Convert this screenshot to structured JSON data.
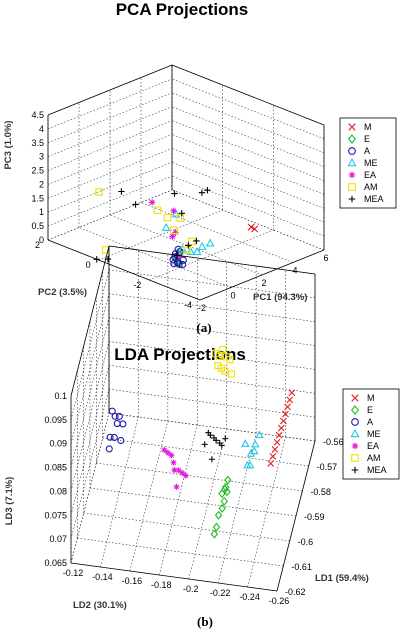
{
  "colors": {
    "M": "#e02020",
    "E": "#22bb22",
    "A": "#1a1aa8",
    "ME": "#22c8e8",
    "EA": "#e020e0",
    "AM": "#f0e000",
    "MEA": "#000000"
  },
  "chart_data": [
    {
      "type": "scatter3d",
      "title": "PCA Projections",
      "caption": "(a)",
      "xlabel": "PC1 (94.3%)",
      "ylabel": "PC2 (3.5%)",
      "zlabel": "PC3 (1.0%)",
      "xlim": [
        -2,
        6
      ],
      "ylim": [
        -4,
        4
      ],
      "zlim": [
        0,
        4.5
      ],
      "xticks": [
        "-2",
        "0",
        "2",
        "4",
        "6"
      ],
      "yticks": [
        "-4",
        "-2",
        "0",
        "2"
      ],
      "zticks": [
        "0",
        "0.5",
        "1",
        "1.5",
        "2",
        "2.5",
        "3",
        "3.5",
        "4",
        "4.5"
      ],
      "legend": [
        "M",
        "E",
        "A",
        "ME",
        "EA",
        "AM",
        "MEA"
      ],
      "series": [
        {
          "name": "M",
          "points": [
            [
              4.1,
              -1.9,
              0.62
            ],
            [
              4.0,
              -1.8,
              0.68
            ]
          ]
        },
        {
          "name": "E",
          "points": [
            [
              0.1,
              -1.1,
              0.3
            ],
            [
              0.2,
              -1.1,
              0.38
            ],
            [
              0.1,
              -1.1,
              0.18
            ],
            [
              0.15,
              -1.15,
              0.1
            ],
            [
              0.25,
              -1.05,
              0.35
            ],
            [
              0.05,
              -1.1,
              0.25
            ]
          ]
        },
        {
          "name": "A",
          "points": [
            [
              0.0,
              -1.0,
              0.05
            ],
            [
              0.1,
              -1.1,
              0.1
            ],
            [
              -0.05,
              -1.0,
              0.2
            ],
            [
              0.2,
              -1.1,
              0.02
            ],
            [
              0.0,
              -1.05,
              0.3
            ],
            [
              0.3,
              -1.2,
              0.0
            ],
            [
              0.35,
              -1.2,
              0.15
            ],
            [
              0.1,
              -1.0,
              0.38
            ],
            [
              0.25,
              -1.1,
              0.45
            ],
            [
              0.15,
              -1.1,
              0.55
            ]
          ]
        },
        {
          "name": "ME",
          "points": [
            [
              1.6,
              -1.6,
              0.58
            ],
            [
              1.2,
              -1.5,
              0.52
            ],
            [
              0.7,
              -1.3,
              0.4
            ],
            [
              0.3,
              -1.2,
              0.55
            ],
            [
              1.0,
              -1.4,
              0.35
            ],
            [
              0.0,
              -1.1,
              1.85
            ],
            [
              -0.5,
              -1.0,
              1.45
            ]
          ]
        },
        {
          "name": "EA",
          "points": [
            [
              -0.8,
              -0.5,
              2.3
            ],
            [
              0.1,
              -1.0,
              1.15
            ],
            [
              -0.1,
              -1.0,
              1.05
            ],
            [
              0.2,
              -1.1,
              0.3
            ],
            [
              0.1,
              -0.9,
              1.9
            ]
          ]
        },
        {
          "name": "AM",
          "points": [
            [
              -3.0,
              0.5,
              2.9
            ],
            [
              0.4,
              -1.0,
              1.6
            ],
            [
              0.0,
              -1.0,
              1.25
            ],
            [
              -0.7,
              -0.7,
              2.05
            ],
            [
              0.6,
              -1.2,
              0.45
            ],
            [
              -2.2,
              0.8,
              0.55
            ],
            [
              -0.3,
              -0.9,
              1.75
            ],
            [
              0.9,
              -1.2,
              0.7
            ]
          ]
        },
        {
          "name": "MEA",
          "points": [
            [
              -1.8,
              0.3,
              2.7
            ],
            [
              1.8,
              -1.0,
              2.2
            ],
            [
              -1.5,
              -0.2,
              2.3
            ],
            [
              0.4,
              -0.7,
              2.4
            ],
            [
              -2.9,
              0.7,
              0.4
            ],
            [
              -2.3,
              0.6,
              0.3
            ],
            [
              0.5,
              -1.0,
              1.75
            ],
            [
              0.2,
              -1.0,
              0.3
            ],
            [
              0.8,
              -1.1,
              0.55
            ],
            [
              1.2,
              -1.2,
              0.65
            ],
            [
              2.4,
              -0.8,
              2.1
            ]
          ]
        }
      ]
    },
    {
      "type": "scatter3d",
      "title": "LDA Projections",
      "caption": "(b)",
      "xlabel": "LD1 (59.4%)",
      "ylabel": "LD2 (30.1%)",
      "zlabel": "LD3 (7.1%)",
      "xlim": [
        -0.62,
        -0.56
      ],
      "ylim": [
        -0.26,
        -0.12
      ],
      "zlim": [
        0.065,
        0.1
      ],
      "xticks": [
        "-0.62",
        "-0.61",
        "-0.6",
        "-0.59",
        "-0.58",
        "-0.57",
        "-0.56"
      ],
      "yticks": [
        "-0.26",
        "-0.24",
        "-0.22",
        "-0.2",
        "-0.18",
        "-0.16",
        "-0.14",
        "-0.12"
      ],
      "zticks": [
        "0.065",
        "0.07",
        "0.075",
        "0.08",
        "0.085",
        "0.09",
        "0.095",
        "0.1"
      ],
      "legend": [
        "M",
        "E",
        "A",
        "ME",
        "EA",
        "AM",
        "MEA"
      ],
      "series": [
        {
          "name": "M",
          "points": [
            [
              -0.585,
              -0.255,
              0.088
            ],
            [
              -0.586,
              -0.254,
              0.087
            ],
            [
              -0.587,
              -0.253,
              0.086
            ],
            [
              -0.588,
              -0.252,
              0.085
            ],
            [
              -0.589,
              -0.251,
              0.084
            ],
            [
              -0.59,
              -0.25,
              0.083
            ],
            [
              -0.591,
              -0.249,
              0.082
            ],
            [
              -0.592,
              -0.248,
              0.081
            ],
            [
              -0.593,
              -0.247,
              0.08
            ],
            [
              -0.594,
              -0.246,
              0.079
            ],
            [
              -0.595,
              -0.245,
              0.078
            ]
          ]
        },
        {
          "name": "E",
          "points": [
            [
              -0.6,
              -0.218,
              0.076
            ],
            [
              -0.601,
              -0.217,
              0.075
            ],
            [
              -0.6,
              -0.216,
              0.074
            ],
            [
              -0.599,
              -0.217,
              0.073
            ],
            [
              -0.601,
              -0.216,
              0.072
            ],
            [
              -0.602,
              -0.215,
              0.071
            ],
            [
              -0.6,
              -0.214,
              0.073
            ],
            [
              -0.603,
              -0.213,
              0.07
            ],
            [
              -0.604,
              -0.212,
              0.068
            ],
            [
              -0.605,
              -0.211,
              0.067
            ]
          ]
        },
        {
          "name": "A",
          "points": [
            [
              -0.62,
              -0.15,
              0.097
            ],
            [
              -0.619,
              -0.151,
              0.095
            ],
            [
              -0.62,
              -0.148,
              0.098
            ],
            [
              -0.618,
              -0.152,
              0.096
            ],
            [
              -0.617,
              -0.154,
              0.094
            ],
            [
              -0.621,
              -0.147,
              0.093
            ],
            [
              -0.619,
              -0.149,
              0.092
            ],
            [
              -0.618,
              -0.153,
              0.091
            ],
            [
              -0.62,
              -0.146,
              0.09
            ]
          ]
        },
        {
          "name": "ME",
          "points": [
            [
              -0.592,
              -0.236,
              0.082
            ],
            [
              -0.594,
              -0.234,
              0.081
            ],
            [
              -0.596,
              -0.232,
              0.08
            ],
            [
              -0.593,
              -0.233,
              0.079
            ],
            [
              -0.597,
              -0.23,
              0.078
            ],
            [
              -0.595,
              -0.231,
              0.077
            ],
            [
              -0.598,
              -0.229,
              0.083
            ]
          ]
        },
        {
          "name": "EA",
          "points": [
            [
              -0.612,
              -0.18,
              0.087
            ],
            [
              -0.611,
              -0.182,
              0.086
            ],
            [
              -0.61,
              -0.184,
              0.085
            ],
            [
              -0.609,
              -0.185,
              0.083
            ],
            [
              -0.61,
              -0.186,
              0.082
            ],
            [
              -0.608,
              -0.188,
              0.081
            ],
            [
              -0.607,
              -0.19,
              0.08
            ],
            [
              -0.606,
              -0.192,
              0.079
            ],
            [
              -0.609,
              -0.187,
              0.078
            ]
          ]
        },
        {
          "name": "AM",
          "points": [
            [
              -0.596,
              -0.208,
              0.1
            ],
            [
              -0.595,
              -0.21,
              0.099
            ],
            [
              -0.594,
              -0.212,
              0.1
            ],
            [
              -0.593,
              -0.214,
              0.098
            ],
            [
              -0.592,
              -0.216,
              0.097
            ],
            [
              -0.594,
              -0.211,
              0.096
            ],
            [
              -0.593,
              -0.213,
              0.095
            ],
            [
              -0.595,
              -0.209,
              0.097
            ],
            [
              -0.592,
              -0.217,
              0.094
            ]
          ]
        },
        {
          "name": "MEA",
          "points": [
            [
              -0.603,
              -0.206,
              0.087
            ],
            [
              -0.602,
              -0.207,
              0.086
            ],
            [
              -0.601,
              -0.209,
              0.085
            ],
            [
              -0.6,
              -0.21,
              0.084
            ],
            [
              -0.604,
              -0.204,
              0.085
            ],
            [
              -0.599,
              -0.212,
              0.083
            ],
            [
              -0.598,
              -0.213,
              0.082
            ],
            [
              -0.602,
              -0.208,
              0.081
            ],
            [
              -0.597,
              -0.215,
              0.083
            ]
          ]
        }
      ]
    }
  ]
}
